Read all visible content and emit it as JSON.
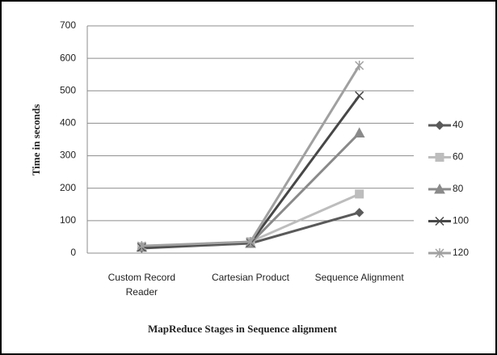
{
  "chart_data": {
    "type": "line",
    "x_label": "MapReduce Stages in Sequence alignment",
    "y_label": "Time in seconds",
    "categories": [
      "Custom Record Reader",
      "Cartesian Product",
      "Sequence Alignment"
    ],
    "series": [
      {
        "name": "40",
        "color": "#5a5a5a",
        "marker": "diamond",
        "values": [
          15,
          30,
          125
        ]
      },
      {
        "name": "60",
        "color": "#bdbdbd",
        "marker": "square",
        "values": [
          20,
          35,
          182
        ]
      },
      {
        "name": "80",
        "color": "#8a8a8a",
        "marker": "triangle",
        "values": [
          18,
          30,
          370
        ]
      },
      {
        "name": "100",
        "color": "#474747",
        "marker": "x",
        "values": [
          18,
          32,
          485
        ]
      },
      {
        "name": "120",
        "color": "#a0a0a0",
        "marker": "star",
        "values": [
          22,
          35,
          578
        ]
      }
    ],
    "ylim": [
      0,
      700
    ],
    "yticks": [
      0,
      100,
      200,
      300,
      400,
      500,
      600,
      700
    ],
    "grid": true,
    "legend": "right"
  }
}
